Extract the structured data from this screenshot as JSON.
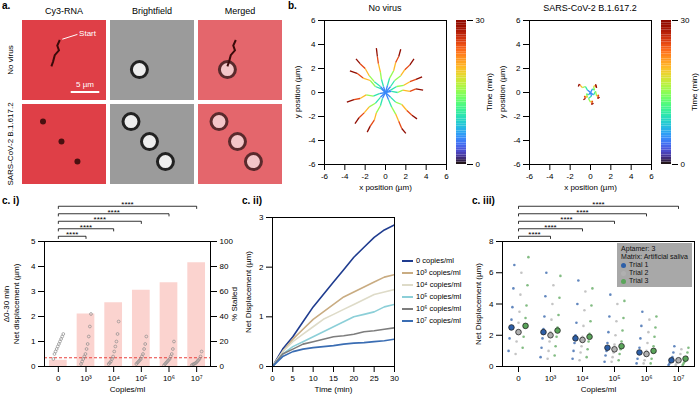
{
  "image_panel": {
    "panel_label": "a.",
    "columns": [
      "Cy3-RNA",
      "Brightfield",
      "Merged"
    ],
    "rows": [
      "No virus",
      "SARS-CoV-2 B.1.617.2"
    ],
    "annotation": "Start",
    "scale_bar": "5 µm"
  },
  "chart_data": [
    {
      "type": "trajectory",
      "panel_label": "b.",
      "title": "No virus",
      "xlabel": "x position (µm)",
      "ylabel": "y position (µm)",
      "xlim": [
        -6,
        6
      ],
      "ylim": [
        -6,
        6
      ],
      "xticks": [
        -6,
        -4,
        -2,
        0,
        2,
        4,
        6
      ],
      "yticks": [
        -6,
        -4,
        -2,
        0,
        2,
        4,
        6
      ],
      "time": [
        0,
        5,
        10,
        15,
        20,
        25,
        30
      ],
      "colorbar": {
        "range": [
          0,
          30
        ],
        "ticks": [
          0,
          30
        ],
        "label": "Time (min)"
      },
      "series": [
        {
          "x": [
            0,
            0.5,
            1.1,
            1.8,
            2.4,
            3.0,
            3.6
          ],
          "y": [
            0,
            0.2,
            0.5,
            0.6,
            0.9,
            1.1,
            1.3
          ]
        },
        {
          "x": [
            0,
            -0.4,
            -1.0,
            -1.5,
            -2.2,
            -2.8,
            -3.5
          ],
          "y": [
            0,
            0.3,
            0.5,
            1.0,
            1.2,
            1.6,
            1.8
          ]
        },
        {
          "x": [
            0,
            0.2,
            0.4,
            0.8,
            1.0,
            1.3,
            1.5
          ],
          "y": [
            0,
            0.6,
            1.2,
            1.8,
            2.5,
            3.0,
            3.6
          ]
        },
        {
          "x": [
            0,
            -0.3,
            -0.5,
            -0.9,
            -1.1,
            -1.5,
            -1.8
          ],
          "y": [
            0,
            -0.5,
            -1.1,
            -1.7,
            -2.3,
            -2.8,
            -3.3
          ]
        },
        {
          "x": [
            0,
            0.5,
            1.0,
            1.6,
            2.1,
            2.6,
            3.1
          ],
          "y": [
            0,
            -0.4,
            -0.8,
            -1.0,
            -1.5,
            -1.9,
            -2.2
          ]
        },
        {
          "x": [
            0,
            -0.6,
            -1.2,
            -1.9,
            -2.5,
            -3.1,
            -3.8
          ],
          "y": [
            0,
            -0.1,
            -0.3,
            -0.2,
            -0.5,
            -0.6,
            -0.8
          ]
        },
        {
          "x": [
            0,
            -0.2,
            -0.4,
            -0.5,
            -0.7,
            -0.8,
            -0.9
          ],
          "y": [
            0,
            0.5,
            1.1,
            1.7,
            2.4,
            3.0,
            3.7
          ]
        },
        {
          "x": [
            0,
            0.3,
            0.6,
            1.0,
            1.3,
            1.6,
            2.0
          ],
          "y": [
            0,
            -0.6,
            -1.2,
            -1.8,
            -2.4,
            -3.0,
            -3.4
          ]
        },
        {
          "x": [
            0,
            0.6,
            1.2,
            1.7,
            2.4,
            3.0,
            3.7
          ],
          "y": [
            0,
            0.1,
            0.0,
            0.2,
            0.1,
            0.3,
            0.2
          ]
        },
        {
          "x": [
            0,
            -0.5,
            -1.0,
            -1.6,
            -2.1,
            -2.6,
            -3.0
          ],
          "y": [
            0,
            -0.4,
            -0.9,
            -1.2,
            -1.7,
            -2.1,
            -2.6
          ]
        },
        {
          "x": [
            0,
            -0.5,
            -1.1,
            -1.6,
            -2.0,
            -2.5,
            -2.9
          ],
          "y": [
            0,
            0.5,
            0.9,
            1.4,
            2.0,
            2.4,
            2.8
          ]
        },
        {
          "x": [
            0,
            0.5,
            0.9,
            1.5,
            1.9,
            2.4,
            2.8
          ],
          "y": [
            0,
            0.5,
            1.0,
            1.4,
            1.9,
            2.3,
            2.8
          ]
        }
      ]
    },
    {
      "type": "trajectory",
      "title": "SARS-CoV-2 B.1.617.2",
      "xlabel": "x position (µm)",
      "ylabel": "y position (µm)",
      "xlim": [
        -6,
        6
      ],
      "ylim": [
        -6,
        6
      ],
      "xticks": [
        -6,
        -4,
        -2,
        0,
        2,
        4,
        6
      ],
      "yticks": [
        -6,
        -4,
        -2,
        0,
        2,
        4,
        6
      ],
      "time": [
        0,
        5,
        10,
        15,
        20,
        25,
        30
      ],
      "colorbar": {
        "range": [
          0,
          30
        ],
        "ticks": [
          0,
          30
        ],
        "label": "Time (min)"
      },
      "series": [
        {
          "x": [
            0,
            -0.3,
            -0.5,
            -0.8,
            -1.0,
            -1.1,
            -1.2
          ],
          "y": [
            0,
            0.2,
            0.5,
            0.4,
            0.6,
            0.7,
            0.5
          ]
        },
        {
          "x": [
            0,
            0.3,
            0.5,
            0.6,
            0.8,
            0.7,
            0.9
          ],
          "y": [
            0,
            -0.2,
            0.1,
            -0.3,
            -0.2,
            -0.5,
            -0.4
          ]
        },
        {
          "x": [
            0,
            0.1,
            -0.2,
            0.0,
            0.2,
            0.1,
            0.3
          ],
          "y": [
            0,
            -0.3,
            -0.5,
            -0.8,
            -0.7,
            -1.0,
            -0.9
          ]
        },
        {
          "x": [
            0,
            -0.2,
            -0.4,
            -0.3,
            -0.6,
            -0.5,
            -0.7
          ],
          "y": [
            0,
            -0.2,
            -0.1,
            -0.4,
            -0.3,
            -0.5,
            -0.6
          ]
        },
        {
          "x": [
            0,
            0.2,
            0.4,
            0.3,
            0.5,
            0.6,
            0.5
          ],
          "y": [
            0,
            0.3,
            0.2,
            0.5,
            0.6,
            0.4,
            0.7
          ]
        }
      ]
    },
    {
      "type": "bar_scatter",
      "panel_label": "c. i)",
      "categories": [
        "0",
        "10³",
        "10⁴",
        "10⁵",
        "10⁶",
        "10⁷"
      ],
      "xlabel": "Copies/ml",
      "ylabel": "Net displacement (µm)",
      "ylabel_prefix": "Δ0-30 min",
      "ylim": [
        0,
        5
      ],
      "yticks": [
        0,
        1,
        2,
        3,
        4,
        5
      ],
      "y2label": "% Stalled",
      "y2lim": [
        0,
        100
      ],
      "y2ticks": [
        0,
        20,
        40,
        60,
        80,
        100
      ],
      "series": [
        {
          "type": "bar",
          "axis": "y2",
          "color": "#fbd3cf",
          "values": [
            5,
            42,
            51,
            61,
            67,
            83
          ]
        },
        {
          "type": "scatter",
          "color": "#8c8c8c",
          "points": [
            [
              0.3,
              0.5,
              0.6,
              0.7,
              0.8,
              0.9,
              1.0,
              1.1,
              1.2,
              1.3
            ],
            [
              0.1,
              0.2,
              0.3,
              0.4,
              0.5,
              0.7,
              0.9,
              1.2,
              1.6,
              2.1
            ],
            [
              0.1,
              0.15,
              0.2,
              0.3,
              0.4,
              0.6,
              0.8,
              1.0,
              1.3,
              1.8
            ],
            [
              0.1,
              0.15,
              0.2,
              0.25,
              0.3,
              0.4,
              0.5,
              0.7,
              0.9,
              1.2
            ],
            [
              0.05,
              0.1,
              0.15,
              0.2,
              0.25,
              0.3,
              0.4,
              0.5,
              0.7,
              1.0
            ],
            [
              0.05,
              0.08,
              0.1,
              0.12,
              0.15,
              0.2,
              0.25,
              0.3,
              0.4,
              0.6
            ]
          ]
        }
      ],
      "threshold": {
        "value": 0.35,
        "color": "#e8413c",
        "line_style": "dashed"
      },
      "significance": [
        {
          "from": 0,
          "to": 1,
          "label": "****"
        },
        {
          "from": 0,
          "to": 2,
          "label": "****"
        },
        {
          "from": 0,
          "to": 3,
          "label": "****"
        },
        {
          "from": 0,
          "to": 4,
          "label": "****"
        },
        {
          "from": 0,
          "to": 5,
          "label": "****"
        }
      ]
    },
    {
      "type": "line",
      "panel_label": "c. ii)",
      "xlabel": "Time (min)",
      "ylabel": "Net Displacement (µm)",
      "xlim": [
        0,
        30
      ],
      "xticks": [
        0,
        5,
        10,
        15,
        20,
        25,
        30
      ],
      "ylim": [
        0,
        3
      ],
      "yticks": [
        0,
        1,
        2,
        3
      ],
      "legend": "right",
      "x": [
        0,
        2.5,
        5,
        7.5,
        10,
        12.5,
        15,
        17.5,
        20,
        22.5,
        25,
        27.5,
        30
      ],
      "series": [
        {
          "name": "0 copies/ml",
          "color": "#1f3c8f",
          "values": [
            0,
            0.35,
            0.6,
            0.9,
            1.2,
            1.45,
            1.7,
            1.95,
            2.2,
            2.4,
            2.6,
            2.75,
            2.85
          ]
        },
        {
          "name": "10³ copies/ml",
          "color": "#c9ac82",
          "values": [
            0,
            0.3,
            0.55,
            0.75,
            0.95,
            1.1,
            1.25,
            1.4,
            1.5,
            1.6,
            1.7,
            1.8,
            1.85
          ]
        },
        {
          "name": "10⁴ copies/ml",
          "color": "#dedbc8",
          "values": [
            0,
            0.3,
            0.5,
            0.65,
            0.8,
            0.95,
            1.05,
            1.15,
            1.25,
            1.35,
            1.45,
            1.5,
            1.55
          ]
        },
        {
          "name": "10⁵ copies/ml",
          "color": "#8ccfd8",
          "values": [
            0,
            0.25,
            0.4,
            0.5,
            0.6,
            0.7,
            0.8,
            0.9,
            1.0,
            1.05,
            1.1,
            1.2,
            1.25
          ]
        },
        {
          "name": "10⁶ copies/ml",
          "color": "#7d7d7d",
          "values": [
            0,
            0.25,
            0.35,
            0.45,
            0.5,
            0.55,
            0.6,
            0.62,
            0.65,
            0.7,
            0.72,
            0.75,
            0.78
          ]
        },
        {
          "name": "10⁷ copies/ml",
          "color": "#3a6db3",
          "values": [
            0,
            0.2,
            0.3,
            0.35,
            0.38,
            0.4,
            0.42,
            0.45,
            0.47,
            0.48,
            0.5,
            0.52,
            0.55
          ]
        }
      ]
    },
    {
      "type": "scatter",
      "panel_label": "c. iii)",
      "categories": [
        "0",
        "10³",
        "10⁴",
        "10⁵",
        "10⁶",
        "10⁷"
      ],
      "xlabel": "Copies/ml",
      "ylabel": "Net Displacement (µm)",
      "ylim": [
        0,
        8
      ],
      "yticks": [
        0,
        2,
        4,
        6,
        8
      ],
      "legend": "top-right",
      "annotations": [
        "Aptamer: 3",
        "Matrix: Artificial saliva"
      ],
      "series": [
        {
          "name": "Trial 1",
          "color": "#2d5fa8",
          "means": [
            2.5,
            2.2,
            1.8,
            1.2,
            0.9,
            0.4
          ],
          "points": [
            [
              1.0,
              1.8,
              2.4,
              3.0,
              3.8,
              5.0,
              6.5
            ],
            [
              0.6,
              1.2,
              1.8,
              2.4,
              3.2,
              4.5,
              6.0
            ],
            [
              0.5,
              1.0,
              1.5,
              2.0,
              2.8,
              4.0,
              5.5
            ],
            [
              0.3,
              0.7,
              1.0,
              1.5,
              2.2,
              3.2,
              4.6
            ],
            [
              0.2,
              0.5,
              0.8,
              1.2,
              1.8,
              2.6,
              3.5
            ],
            [
              0.1,
              0.2,
              0.3,
              0.4,
              0.6,
              0.9,
              1.3
            ]
          ]
        },
        {
          "name": "Trial 2",
          "color": "#b0b0b0",
          "means": [
            2.2,
            2.0,
            1.7,
            1.1,
            0.8,
            0.4
          ],
          "points": [
            [
              0.8,
              1.6,
              2.2,
              2.8,
              3.5,
              4.6,
              6.0
            ],
            [
              0.5,
              1.0,
              1.6,
              2.2,
              3.0,
              4.0,
              5.2
            ],
            [
              0.4,
              0.9,
              1.3,
              1.9,
              2.6,
              3.6,
              4.8
            ],
            [
              0.3,
              0.6,
              0.9,
              1.4,
              2.0,
              2.9,
              4.0
            ],
            [
              0.2,
              0.4,
              0.7,
              1.0,
              1.5,
              2.2,
              3.0
            ],
            [
              0.1,
              0.2,
              0.3,
              0.4,
              0.5,
              0.8,
              1.1
            ]
          ]
        },
        {
          "name": "Trial 3",
          "color": "#5aa55a",
          "means": [
            2.6,
            2.3,
            1.9,
            1.3,
            1.0,
            0.5
          ],
          "points": [
            [
              1.2,
              1.9,
              2.5,
              3.1,
              3.9,
              5.2,
              7.0
            ],
            [
              0.7,
              1.3,
              1.9,
              2.5,
              3.3,
              4.4,
              5.8
            ],
            [
              0.6,
              1.1,
              1.6,
              2.1,
              2.9,
              3.9,
              5.0
            ],
            [
              0.4,
              0.8,
              1.1,
              1.6,
              2.3,
              3.1,
              4.2
            ],
            [
              0.2,
              0.5,
              0.9,
              1.3,
              1.9,
              2.5,
              3.2
            ],
            [
              0.1,
              0.2,
              0.3,
              0.5,
              0.6,
              0.9,
              1.2
            ]
          ]
        }
      ],
      "significance": [
        {
          "from": 0,
          "to": 1,
          "label": "****"
        },
        {
          "from": 0,
          "to": 2,
          "label": "****"
        },
        {
          "from": 0,
          "to": 3,
          "label": "****"
        },
        {
          "from": 0,
          "to": 4,
          "label": "****"
        },
        {
          "from": 0,
          "to": 5,
          "label": "****"
        }
      ]
    }
  ]
}
